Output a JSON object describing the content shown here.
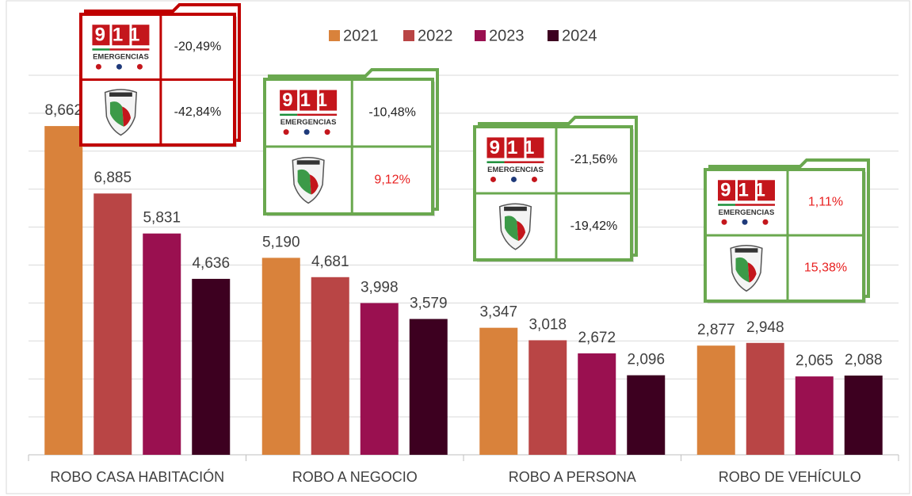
{
  "chart_data": {
    "type": "bar",
    "categories": [
      "ROBO CASA HABITACIÓN",
      "ROBO A NEGOCIO",
      "ROBO A PERSONA",
      "ROBO DE VEHÍCULO"
    ],
    "series": [
      {
        "name": "2021",
        "color": "#d9823b",
        "values": [
          8662,
          5190,
          3347,
          2877
        ],
        "value_labels": [
          "8,662",
          "5,190",
          "3,347",
          "2,877"
        ]
      },
      {
        "name": "2022",
        "color": "#b94545",
        "values": [
          6885,
          4681,
          3018,
          2948
        ],
        "value_labels": [
          "6,885",
          "4,681",
          "3,018",
          "2,948"
        ]
      },
      {
        "name": "2023",
        "color": "#9a1050",
        "values": [
          5831,
          3998,
          2672,
          2065
        ],
        "value_labels": [
          "5,831",
          "3,998",
          "2,672",
          "2,065"
        ]
      },
      {
        "name": "2024",
        "color": "#3d0020",
        "values": [
          4636,
          3579,
          2096,
          2088
        ],
        "value_labels": [
          "4,636",
          "3,579",
          "2,096",
          "2,088"
        ]
      }
    ],
    "ylim": [
      0,
      10000
    ],
    "yticks": [
      0,
      1000,
      2000,
      3000,
      4000,
      5000,
      6000,
      7000,
      8000,
      9000,
      10000
    ],
    "grid": true,
    "legend": "top",
    "logo": {
      "number": "911",
      "text": "EMERGENCIAS"
    },
    "cards": [
      {
        "border_color": "#c00000",
        "rows": [
          {
            "label": "-20,49%",
            "color": "#222222"
          },
          {
            "label": "-42,84%",
            "color": "#222222"
          }
        ]
      },
      {
        "border_color": "#6aa84f",
        "rows": [
          {
            "label": "-10,48%",
            "color": "#222222"
          },
          {
            "label": "9,12%",
            "color": "#e82020"
          }
        ]
      },
      {
        "border_color": "#6aa84f",
        "rows": [
          {
            "label": "-21,56%",
            "color": "#222222"
          },
          {
            "label": "-19,42%",
            "color": "#222222"
          }
        ]
      },
      {
        "border_color": "#6aa84f",
        "rows": [
          {
            "label": "1,11%",
            "color": "#e82020"
          },
          {
            "label": "15,38%",
            "color": "#e82020"
          }
        ]
      }
    ]
  }
}
